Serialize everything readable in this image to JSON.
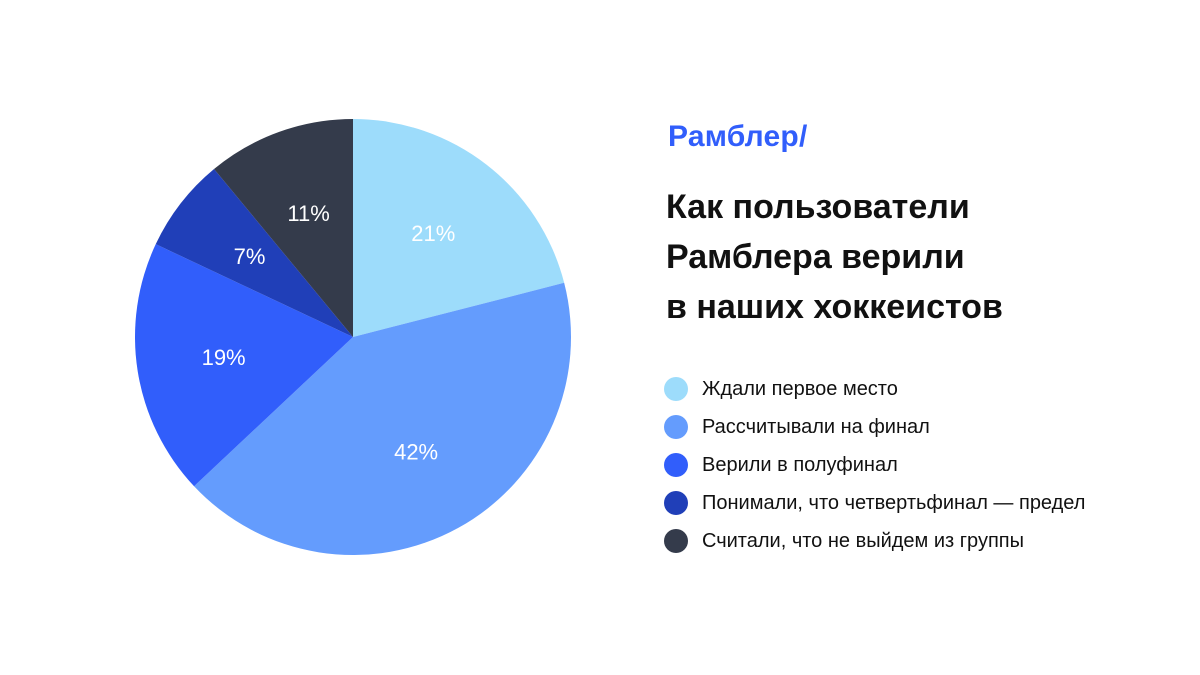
{
  "brand": {
    "logo_text": "Рамблер/"
  },
  "title_lines": [
    "Как пользователи",
    "Рамблера верили",
    "в наших хоккеистов"
  ],
  "chart_data": {
    "type": "pie",
    "categories": [
      "Ждали первое место",
      "Рассчитывали на финал",
      "Верили в полуфинал",
      "Понимали, что четвертьфинал — предел",
      "Считали, что не выйдем из группы"
    ],
    "values": [
      21,
      42,
      19,
      7,
      11
    ],
    "labels": [
      "21%",
      "42%",
      "19%",
      "7%",
      "11%"
    ],
    "colors": [
      "#9ddcfb",
      "#649cfd",
      "#315efb",
      "#203fb8",
      "#343b4b"
    ],
    "title": "Как пользователи Рамблера верили в наших хоккеистов",
    "legend_position": "right",
    "start_angle": "12 o'clock",
    "direction": "clockwise"
  }
}
